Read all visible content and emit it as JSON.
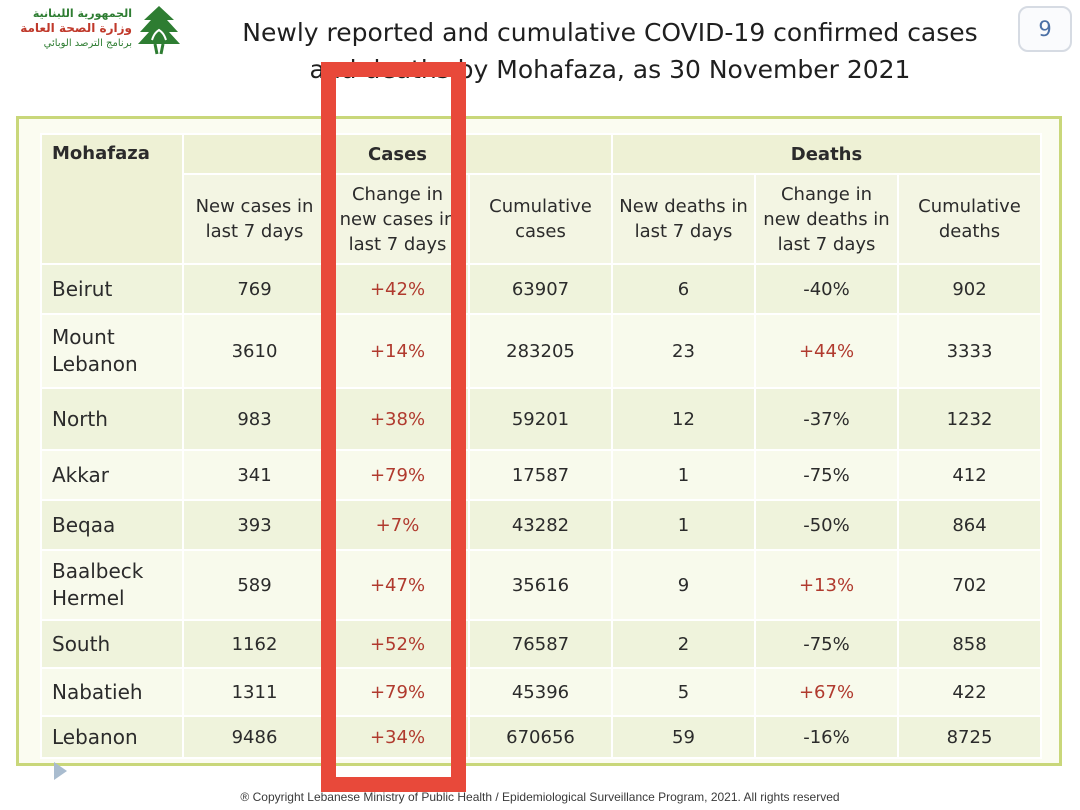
{
  "logo": {
    "line1": "الجمهورية اللبنانية",
    "line2": "وزارة الصحة العامة",
    "line3": "برنامج الترصد الوبائي",
    "icon": "cedar-tree-icon",
    "color_green": "#2e7d32",
    "color_red": "#c0392b"
  },
  "title": {
    "line1": "Newly reported and cumulative COVID-19 confirmed cases",
    "line2": "and deaths by Mohafaza,  as 30 November 2021"
  },
  "page_number": "9",
  "table": {
    "corner_label": "Mohafaza",
    "groups": {
      "cases": "Cases",
      "deaths": "Deaths"
    },
    "columns": [
      "New cases in last 7 days",
      "Change in new cases in last 7 days",
      "Cumulative cases",
      "New deaths in last 7 days",
      "Change in new deaths in last 7 days",
      "Cumulative deaths"
    ],
    "rows": [
      {
        "name": "Beirut",
        "new_cases": "769",
        "change_cases": "+42%",
        "cum_cases": "63907",
        "new_deaths": "6",
        "change_deaths": "-40%",
        "cum_deaths": "902"
      },
      {
        "name": "Mount Lebanon",
        "new_cases": "3610",
        "change_cases": "+14%",
        "cum_cases": "283205",
        "new_deaths": "23",
        "change_deaths": "+44%",
        "cum_deaths": "3333"
      },
      {
        "name": "North",
        "new_cases": "983",
        "change_cases": "+38%",
        "cum_cases": "59201",
        "new_deaths": "12",
        "change_deaths": "-37%",
        "cum_deaths": "1232"
      },
      {
        "name": "Akkar",
        "new_cases": "341",
        "change_cases": "+79%",
        "cum_cases": "17587",
        "new_deaths": "1",
        "change_deaths": "-75%",
        "cum_deaths": "412"
      },
      {
        "name": "Beqaa",
        "new_cases": "393",
        "change_cases": "+7%",
        "cum_cases": "43282",
        "new_deaths": "1",
        "change_deaths": "-50%",
        "cum_deaths": "864"
      },
      {
        "name": "Baalbeck Hermel",
        "new_cases": "589",
        "change_cases": "+47%",
        "cum_cases": "35616",
        "new_deaths": "9",
        "change_deaths": "+13%",
        "cum_deaths": "702"
      },
      {
        "name": "South",
        "new_cases": "1162",
        "change_cases": "+52%",
        "cum_cases": "76587",
        "new_deaths": "2",
        "change_deaths": "-75%",
        "cum_deaths": "858"
      },
      {
        "name": "Nabatieh",
        "new_cases": "1311",
        "change_cases": "+79%",
        "cum_cases": "45396",
        "new_deaths": "5",
        "change_deaths": "+67%",
        "cum_deaths": "422"
      },
      {
        "name": "Lebanon",
        "new_cases": "9486",
        "change_cases": "+34%",
        "cum_cases": "670656",
        "new_deaths": "59",
        "change_deaths": "-16%",
        "cum_deaths": "8725"
      }
    ]
  },
  "colors": {
    "highlight_box": "#e8493a",
    "positive_change": "#b03a2e",
    "frame_border": "#c9d77a",
    "row_odd": "#eff3dc",
    "row_even": "#f8faec"
  },
  "footer": "® Copyright Lebanese Ministry of Public Health / Epidemiological Surveillance Program, 2021. All rights reserved",
  "nav_icon": "play-triangle-icon"
}
